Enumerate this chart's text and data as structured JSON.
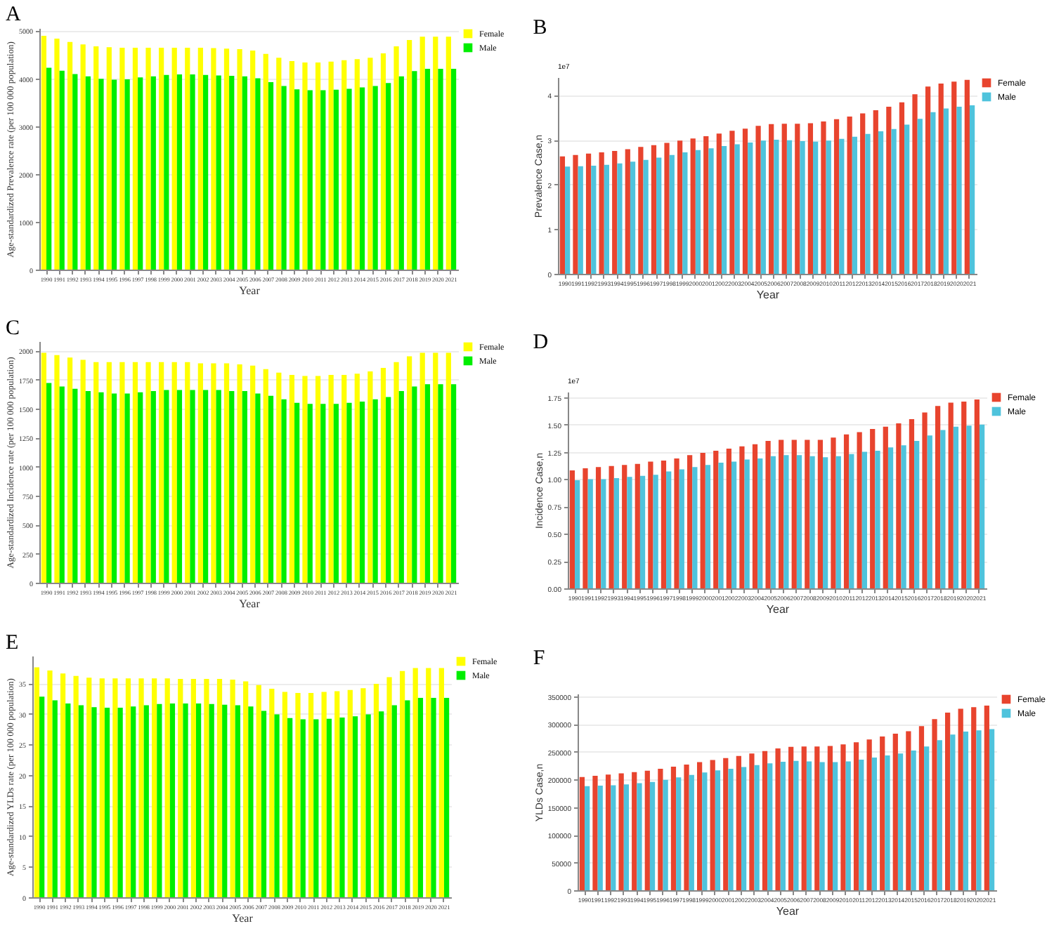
{
  "chart_data": [
    {
      "type": "bar",
      "title": "A",
      "xlabel": "Year",
      "ylabel": "Age-standardized Prevalence rate (per 100 000 population)",
      "categories": [
        "1990",
        "1991",
        "1992",
        "1993",
        "1994",
        "1995",
        "1996",
        "1997",
        "1998",
        "1999",
        "2000",
        "2001",
        "2002",
        "2003",
        "2004",
        "2005",
        "2006",
        "2007",
        "2008",
        "2009",
        "2010",
        "2011",
        "2012",
        "2013",
        "2014",
        "2015",
        "2016",
        "2017",
        "2018",
        "2019",
        "2020",
        "2021"
      ],
      "series": [
        {
          "name": "Female",
          "color": "#ffff00",
          "values": [
            4890,
            4830,
            4760,
            4710,
            4670,
            4650,
            4640,
            4640,
            4640,
            4640,
            4640,
            4640,
            4640,
            4630,
            4620,
            4610,
            4580,
            4510,
            4430,
            4360,
            4330,
            4330,
            4350,
            4380,
            4400,
            4430,
            4520,
            4670,
            4800,
            4870,
            4870,
            4870
          ]
        },
        {
          "name": "Male",
          "color": "#00ee00",
          "values": [
            4220,
            4160,
            4090,
            4040,
            3990,
            3970,
            3980,
            4020,
            4040,
            4070,
            4080,
            4080,
            4070,
            4060,
            4050,
            4040,
            4000,
            3920,
            3840,
            3770,
            3750,
            3750,
            3760,
            3780,
            3810,
            3840,
            3900,
            4040,
            4150,
            4200,
            4200,
            4200
          ]
        }
      ],
      "ylim": [
        0,
        5050
      ],
      "yticks": [
        0,
        1000,
        2000,
        3000,
        4000,
        5000
      ],
      "grid": "y",
      "legend": "right"
    },
    {
      "type": "bar",
      "title": "B",
      "xlabel": "Year",
      "ylabel": "Prevalence Case,n",
      "annotations": [
        "1e7"
      ],
      "categories": [
        "1990",
        "1991",
        "1992",
        "1993",
        "1994",
        "1995",
        "1996",
        "1997",
        "1998",
        "1999",
        "2000",
        "2001",
        "2002",
        "2003",
        "2004",
        "2005",
        "2006",
        "2007",
        "2008",
        "2009",
        "2010",
        "2011",
        "2012",
        "2013",
        "2014",
        "2015",
        "2016",
        "2017",
        "2018",
        "2019",
        "2020",
        "2021"
      ],
      "series": [
        {
          "name": "Female",
          "color": "#e8442e",
          "values": [
            2.63,
            2.66,
            2.69,
            2.72,
            2.75,
            2.79,
            2.84,
            2.88,
            2.93,
            2.98,
            3.03,
            3.08,
            3.14,
            3.2,
            3.25,
            3.31,
            3.35,
            3.36,
            3.36,
            3.37,
            3.41,
            3.46,
            3.52,
            3.59,
            3.66,
            3.74,
            3.84,
            4.02,
            4.19,
            4.26,
            4.3,
            4.34
          ]
        },
        {
          "name": "Male",
          "color": "#4fc3dc",
          "values": [
            2.4,
            2.41,
            2.42,
            2.44,
            2.47,
            2.51,
            2.55,
            2.6,
            2.66,
            2.72,
            2.77,
            2.81,
            2.86,
            2.9,
            2.94,
            2.98,
            3.0,
            2.99,
            2.97,
            2.96,
            2.98,
            3.02,
            3.07,
            3.13,
            3.19,
            3.24,
            3.34,
            3.47,
            3.62,
            3.7,
            3.74,
            3.77
          ]
        }
      ],
      "ylim": [
        0,
        4.4
      ],
      "yticks": [
        0,
        1,
        2,
        3,
        4
      ],
      "grid": "y",
      "legend": "right"
    },
    {
      "type": "bar",
      "title": "C",
      "xlabel": "Year",
      "ylabel": "Age-standardized Incidence rate (per 100 000 population)",
      "categories": [
        "1990",
        "1991",
        "1992",
        "1993",
        "1994",
        "1995",
        "1996",
        "1997",
        "1998",
        "1999",
        "2000",
        "2001",
        "2002",
        "2003",
        "2004",
        "2005",
        "2006",
        "2007",
        "2008",
        "2009",
        "2010",
        "2011",
        "2012",
        "2013",
        "2014",
        "2015",
        "2016",
        "2017",
        "2018",
        "2019",
        "2020",
        "2021"
      ],
      "series": [
        {
          "name": "Female",
          "color": "#ffff00",
          "values": [
            1980,
            1960,
            1940,
            1920,
            1900,
            1900,
            1900,
            1900,
            1900,
            1900,
            1900,
            1900,
            1890,
            1890,
            1890,
            1880,
            1870,
            1840,
            1810,
            1790,
            1780,
            1780,
            1790,
            1790,
            1800,
            1820,
            1850,
            1900,
            1950,
            1980,
            1980,
            1980
          ]
        },
        {
          "name": "Male",
          "color": "#00ee00",
          "values": [
            1720,
            1690,
            1670,
            1650,
            1640,
            1630,
            1630,
            1640,
            1650,
            1660,
            1660,
            1660,
            1660,
            1660,
            1650,
            1650,
            1630,
            1610,
            1580,
            1550,
            1540,
            1540,
            1540,
            1550,
            1560,
            1580,
            1600,
            1650,
            1690,
            1710,
            1710,
            1710
          ]
        }
      ],
      "ylim": [
        0,
        2080
      ],
      "yticks": [
        0,
        250,
        500,
        750,
        1000,
        1250,
        1500,
        1750,
        2000
      ],
      "grid": "y",
      "legend": "right"
    },
    {
      "type": "bar",
      "title": "D",
      "xlabel": "Year",
      "ylabel": "Incidence Case,n",
      "annotations": [
        "1e7"
      ],
      "categories": [
        "1990",
        "1991",
        "1992",
        "1993",
        "1994",
        "1995",
        "1996",
        "1997",
        "1998",
        "1999",
        "2000",
        "2001",
        "2002",
        "2003",
        "2004",
        "2005",
        "2006",
        "2007",
        "2008",
        "2009",
        "2010",
        "2011",
        "2012",
        "2013",
        "2014",
        "2015",
        "2016",
        "2017",
        "2018",
        "2019",
        "2020",
        "2021"
      ],
      "series": [
        {
          "name": "Female",
          "color": "#e8442e",
          "values": [
            1.08,
            1.1,
            1.11,
            1.12,
            1.13,
            1.14,
            1.16,
            1.17,
            1.19,
            1.22,
            1.24,
            1.26,
            1.28,
            1.3,
            1.32,
            1.35,
            1.36,
            1.36,
            1.36,
            1.36,
            1.38,
            1.41,
            1.43,
            1.46,
            1.48,
            1.51,
            1.55,
            1.61,
            1.67,
            1.7,
            1.71,
            1.73
          ]
        },
        {
          "name": "Male",
          "color": "#4fc3dc",
          "values": [
            0.99,
            1.0,
            1.0,
            1.01,
            1.02,
            1.03,
            1.04,
            1.07,
            1.09,
            1.11,
            1.13,
            1.15,
            1.16,
            1.18,
            1.19,
            1.21,
            1.22,
            1.22,
            1.21,
            1.2,
            1.21,
            1.23,
            1.25,
            1.26,
            1.29,
            1.31,
            1.35,
            1.4,
            1.45,
            1.48,
            1.49,
            1.5
          ]
        }
      ],
      "ylim": [
        0,
        1.8
      ],
      "yticks": [
        {
          "value": 0,
          "label": "0.00"
        },
        {
          "value": 0.25,
          "label": "0.25"
        },
        {
          "value": 0.5,
          "label": "0.50"
        },
        {
          "value": 0.75,
          "label": "0.75"
        },
        {
          "value": 1,
          "label": "1.00"
        },
        {
          "value": 1.25,
          "label": "1.25"
        },
        {
          "value": 1.5,
          "label": "1.50"
        },
        {
          "value": 1.75,
          "label": "1.75"
        }
      ],
      "grid": "y",
      "legend": "right"
    },
    {
      "type": "bar",
      "title": "E",
      "xlabel": "Year",
      "ylabel": "Age-standardized YLDs rate (per 100 000 population)",
      "categories": [
        "1990",
        "1991",
        "1992",
        "1993",
        "1994",
        "1995",
        "1996",
        "1997",
        "1998",
        "1999",
        "2000",
        "2001",
        "2002",
        "2003",
        "2004",
        "2005",
        "2006",
        "2007",
        "2008",
        "2009",
        "2010",
        "2011",
        "2012",
        "2013",
        "2014",
        "2015",
        "2016",
        "2017",
        "2018",
        "2019",
        "2020",
        "2021"
      ],
      "series": [
        {
          "name": "Female",
          "color": "#ffff00",
          "values": [
            37.6,
            37.1,
            36.6,
            36.2,
            35.9,
            35.8,
            35.8,
            35.8,
            35.8,
            35.8,
            35.8,
            35.7,
            35.7,
            35.7,
            35.7,
            35.6,
            35.3,
            34.7,
            34.1,
            33.6,
            33.4,
            33.4,
            33.6,
            33.7,
            33.9,
            34.2,
            34.9,
            36.0,
            37.0,
            37.5,
            37.5,
            37.5
          ]
        },
        {
          "name": "Male",
          "color": "#00ee00",
          "values": [
            32.8,
            32.2,
            31.7,
            31.4,
            31.1,
            31.0,
            31.0,
            31.2,
            31.4,
            31.6,
            31.7,
            31.7,
            31.7,
            31.6,
            31.5,
            31.4,
            31.2,
            30.5,
            29.9,
            29.3,
            29.1,
            29.1,
            29.2,
            29.4,
            29.6,
            29.9,
            30.4,
            31.4,
            32.2,
            32.6,
            32.6,
            32.6
          ]
        }
      ],
      "ylim": [
        0,
        39.5
      ],
      "yticks": [
        0,
        5,
        10,
        15,
        20,
        25,
        30,
        35
      ],
      "grid": "y",
      "legend": "right"
    },
    {
      "type": "bar",
      "title": "F",
      "xlabel": "Year",
      "ylabel": "YLDs Case,n",
      "categories": [
        "1990",
        "1991",
        "1992",
        "1993",
        "1994",
        "1995",
        "1996",
        "1997",
        "1998",
        "1999",
        "2000",
        "2001",
        "2002",
        "2003",
        "2004",
        "2005",
        "2006",
        "2007",
        "2008",
        "2009",
        "2010",
        "2011",
        "2012",
        "2013",
        "2014",
        "2015",
        "2016",
        "2017",
        "2018",
        "2019",
        "2020",
        "2021"
      ],
      "series": [
        {
          "name": "Female",
          "color": "#e8442e",
          "values": [
            204500,
            206700,
            208900,
            211200,
            213400,
            215700,
            219400,
            223100,
            226900,
            231300,
            235100,
            238800,
            242500,
            247000,
            251500,
            256000,
            259000,
            259700,
            259700,
            260400,
            263400,
            267200,
            272400,
            277600,
            282800,
            287300,
            296300,
            309000,
            320900,
            327600,
            330600,
            333600
          ]
        },
        {
          "name": "Male",
          "color": "#4fc3dc",
          "values": [
            188000,
            188800,
            189600,
            191000,
            193300,
            195500,
            199300,
            203700,
            208200,
            212700,
            216400,
            219400,
            222400,
            226100,
            229100,
            232100,
            233600,
            232800,
            231300,
            231300,
            232800,
            235800,
            239600,
            243300,
            247000,
            252200,
            259700,
            270900,
            281300,
            286600,
            288800,
            291000
          ]
        }
      ],
      "ylim": [
        0,
        355000
      ],
      "yticks": [
        0,
        50000,
        100000,
        150000,
        200000,
        250000,
        300000,
        350000
      ],
      "grid": "y",
      "legend": "right"
    }
  ]
}
